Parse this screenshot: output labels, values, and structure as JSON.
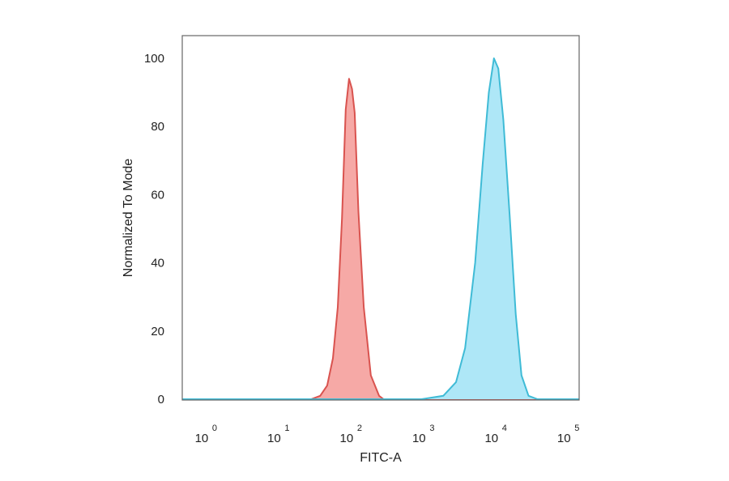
{
  "chart_data": {
    "type": "area",
    "title": "",
    "xlabel": "FITC-A",
    "ylabel": "Normalized To Mode",
    "x_scale": "log",
    "xlim": [
      0.5,
      150000
    ],
    "ylim": [
      0,
      100
    ],
    "x_ticks": [
      {
        "value": 1,
        "base": "10",
        "exp": "0"
      },
      {
        "value": 10,
        "base": "10",
        "exp": "1"
      },
      {
        "value": 100,
        "base": "10",
        "exp": "2"
      },
      {
        "value": 1000,
        "base": "10",
        "exp": "3"
      },
      {
        "value": 10000,
        "base": "10",
        "exp": "4"
      },
      {
        "value": 100000,
        "base": "10",
        "exp": "5"
      }
    ],
    "y_ticks": [
      0,
      20,
      40,
      60,
      80,
      100
    ],
    "grid": false,
    "legend": "none",
    "series": [
      {
        "color": "#d9534f",
        "fill": "#f6a9a6",
        "points": [
          [
            0.5,
            0
          ],
          [
            30,
            0
          ],
          [
            40,
            1
          ],
          [
            50,
            4
          ],
          [
            60,
            12
          ],
          [
            70,
            27
          ],
          [
            80,
            53
          ],
          [
            90,
            85
          ],
          [
            100,
            94
          ],
          [
            110,
            91
          ],
          [
            120,
            84
          ],
          [
            135,
            55
          ],
          [
            160,
            27
          ],
          [
            200,
            7
          ],
          [
            260,
            1
          ],
          [
            300,
            0
          ],
          [
            150000,
            0
          ]
        ]
      },
      {
        "color": "#3fbbd6",
        "fill": "#aee7f7",
        "points": [
          [
            0.5,
            0
          ],
          [
            1000,
            0
          ],
          [
            2000,
            1
          ],
          [
            3000,
            5
          ],
          [
            4000,
            15
          ],
          [
            5500,
            40
          ],
          [
            7000,
            69
          ],
          [
            8500,
            90
          ],
          [
            10000,
            100
          ],
          [
            11500,
            97
          ],
          [
            13500,
            82
          ],
          [
            16500,
            54
          ],
          [
            20000,
            25
          ],
          [
            24000,
            7
          ],
          [
            30000,
            1
          ],
          [
            40000,
            0
          ],
          [
            150000,
            0
          ]
        ]
      }
    ]
  }
}
